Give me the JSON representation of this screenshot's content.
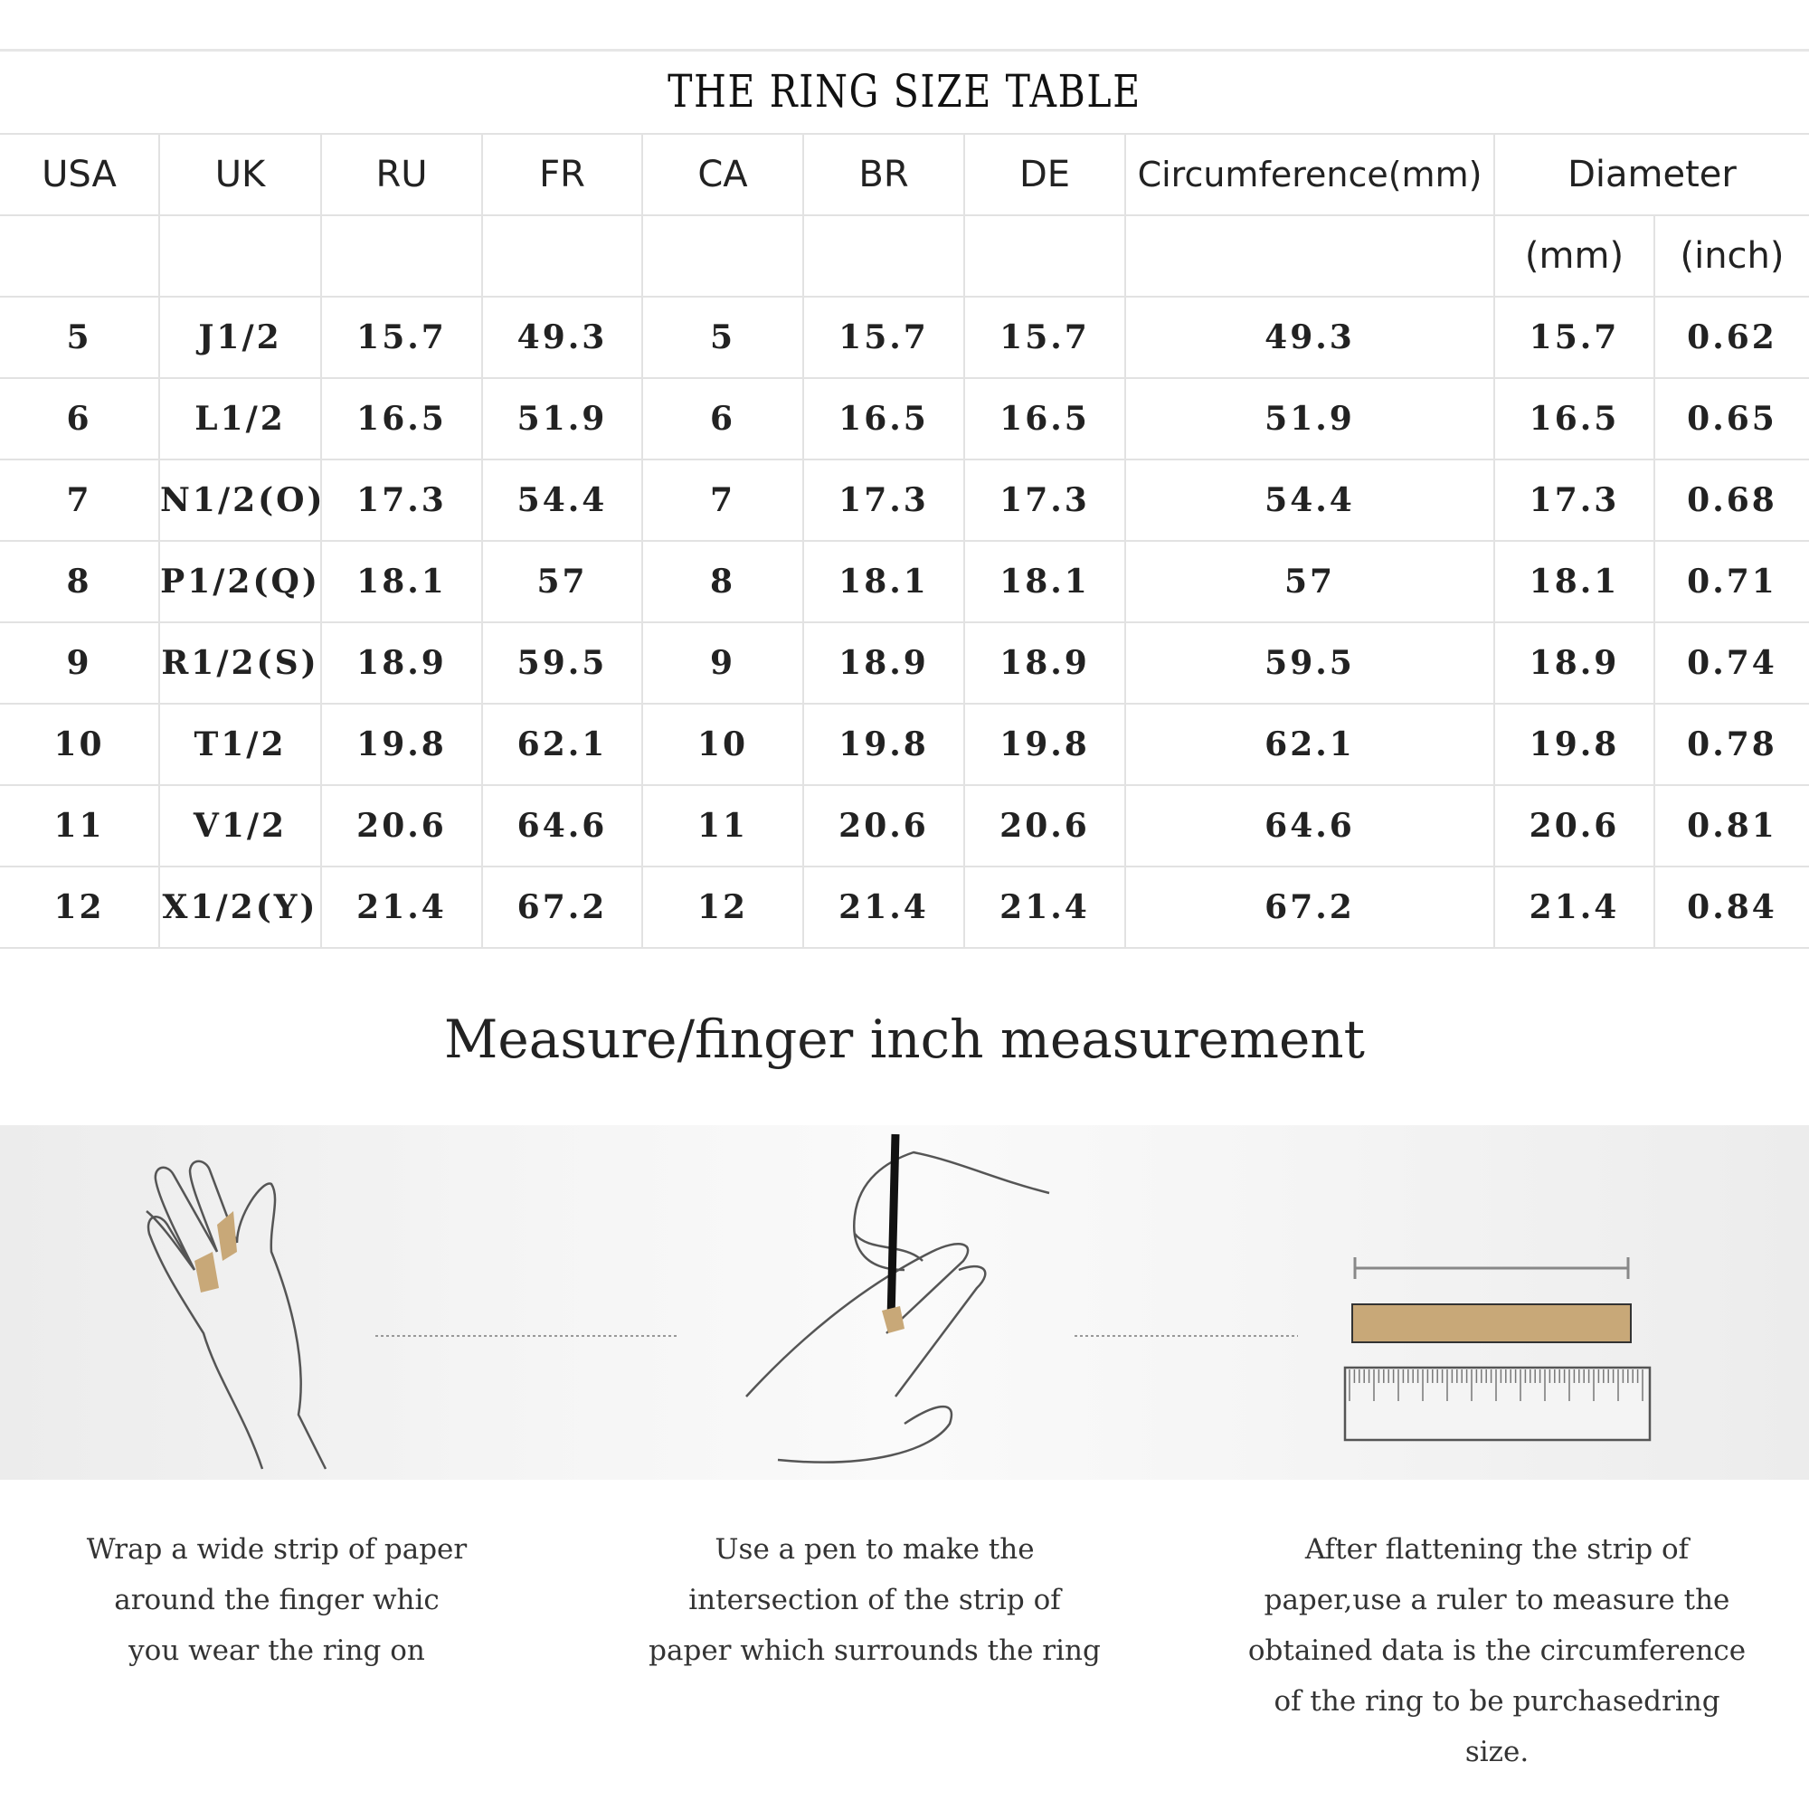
{
  "table": {
    "title": "THE RING SIZE TABLE",
    "headers": [
      "USA",
      "UK",
      "RU",
      "FR",
      "CA",
      "BR",
      "DE",
      "Circumference(mm)",
      "Diameter"
    ],
    "diameter_subheaders": [
      "(mm)",
      "(inch)"
    ],
    "rows": [
      [
        "5",
        "J1/2",
        "15.7",
        "49.3",
        "5",
        "15.7",
        "15.7",
        "49.3",
        "15.7",
        "0.62"
      ],
      [
        "6",
        "L1/2",
        "16.5",
        "51.9",
        "6",
        "16.5",
        "16.5",
        "51.9",
        "16.5",
        "0.65"
      ],
      [
        "7",
        "N1/2(O)",
        "17.3",
        "54.4",
        "7",
        "17.3",
        "17.3",
        "54.4",
        "17.3",
        "0.68"
      ],
      [
        "8",
        "P1/2(Q)",
        "18.1",
        "57",
        "8",
        "18.1",
        "18.1",
        "57",
        "18.1",
        "0.71"
      ],
      [
        "9",
        "R1/2(S)",
        "18.9",
        "59.5",
        "9",
        "18.9",
        "18.9",
        "59.5",
        "18.9",
        "0.74"
      ],
      [
        "10",
        "T1/2",
        "19.8",
        "62.1",
        "10",
        "19.8",
        "19.8",
        "62.1",
        "19.8",
        "0.78"
      ],
      [
        "11",
        "V1/2",
        "20.6",
        "64.6",
        "11",
        "20.6",
        "20.6",
        "64.6",
        "20.6",
        "0.81"
      ],
      [
        "12",
        "X1/2(Y)",
        "21.4",
        "67.2",
        "12",
        "21.4",
        "21.4",
        "67.2",
        "21.4",
        "0.84"
      ]
    ]
  },
  "measure": {
    "title": "Measure/finger inch measurement",
    "steps": [
      {
        "icon": "hand-wrap-paper-icon",
        "lines": [
          "Wrap a wide strip of paper",
          "around the finger whic",
          "you wear the ring on"
        ]
      },
      {
        "icon": "pen-mark-paper-icon",
        "lines": [
          "Use a pen to make the",
          "intersection of the strip of",
          "paper which surrounds the ring"
        ]
      },
      {
        "icon": "ruler-measure-icon",
        "lines": [
          "After flattening the strip of",
          "paper,use a ruler to measure the",
          "obtained data is the circumference",
          "of the ring to be purchasedring size."
        ]
      }
    ],
    "colors": {
      "paper_strip": "#c8a878",
      "line": "#555555"
    }
  }
}
